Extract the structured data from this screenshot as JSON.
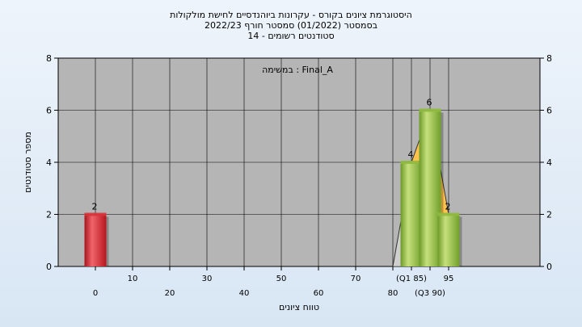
{
  "chart_data": {
    "type": "bar",
    "title_lines": [
      "היסטוגרמת ציונים בקורס - עקרונות ביוהנדסיים לחישת מולקולות",
      "בסמסטר  (01/2022)  סמסטר חורף 2022/23",
      "סטודנטים רשומים - 14"
    ],
    "annotation": "במשימה : Final_A",
    "ylabel": "מספר סטודנטים",
    "xlabel": "טווח ציונים",
    "ylim": [
      0,
      8
    ],
    "yticks": [
      "0",
      "2",
      "4",
      "6",
      "8"
    ],
    "x_tick_labels": [
      {
        "x": 0,
        "label": "0"
      },
      {
        "x": 10,
        "label": "10"
      },
      {
        "x": 20,
        "label": "20"
      },
      {
        "x": 30,
        "label": "30"
      },
      {
        "x": 40,
        "label": "40"
      },
      {
        "x": 50,
        "label": "50"
      },
      {
        "x": 60,
        "label": "60"
      },
      {
        "x": 70,
        "label": "70"
      },
      {
        "x": 80,
        "label": "80"
      },
      {
        "x": 85,
        "label": "(Q1 85)"
      },
      {
        "x": 90,
        "label": "(Q3 90)"
      },
      {
        "x": 95,
        "label": "95"
      }
    ],
    "bars": [
      {
        "x": 0,
        "value": 2,
        "label": "2",
        "color": "#d9333a"
      },
      {
        "x": 85,
        "value": 4,
        "label": "4",
        "color": "#8fba3e"
      },
      {
        "x": 90,
        "value": 6,
        "label": "6",
        "color": "#8fba3e"
      },
      {
        "x": 95,
        "value": 2,
        "label": "2",
        "color": "#8fba3e"
      }
    ],
    "distribution_polygon": [
      {
        "x": 80,
        "y": 0
      },
      {
        "x": 85,
        "y": 4
      },
      {
        "x": 90,
        "y": 6
      },
      {
        "x": 95,
        "y": 2
      }
    ],
    "colors": {
      "plot_background": "#b5b5b5",
      "polygon_fill": "#ffc34d",
      "polygon_shadow": "#e3e3e3"
    },
    "grid": true
  }
}
